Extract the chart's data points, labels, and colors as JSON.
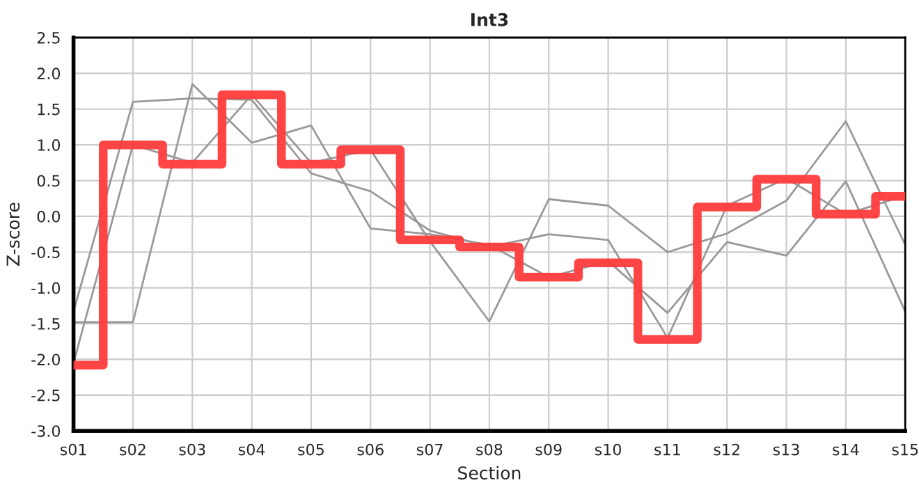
{
  "chart_data": {
    "type": "line",
    "title": "Int3",
    "xlabel": "Section",
    "ylabel": "Z-score",
    "categories": [
      "s01",
      "s02",
      "s03",
      "s04",
      "s05",
      "s06",
      "s07",
      "s08",
      "s09",
      "s10",
      "s11",
      "s12",
      "s13",
      "s14",
      "s15"
    ],
    "series": [
      {
        "color": "#999999",
        "values": [
          -1.48,
          -1.48,
          1.85,
          1.03,
          1.27,
          -0.17,
          -0.25,
          -0.4,
          -0.85,
          -0.63,
          -1.35,
          -0.36,
          -0.55,
          0.49,
          -1.33
        ]
      },
      {
        "color": "#999999",
        "values": [
          -1.33,
          1.6,
          1.65,
          1.63,
          0.6,
          0.35,
          -0.2,
          -0.43,
          -0.25,
          -0.33,
          -1.7,
          0.15,
          0.53,
          0.03,
          0.29
        ]
      },
      {
        "color": "#999999",
        "values": [
          -2.05,
          1.0,
          0.75,
          1.7,
          0.75,
          0.93,
          -0.35,
          -1.47,
          0.24,
          0.15,
          -0.5,
          -0.24,
          0.22,
          1.33,
          -0.4
        ]
      },
      {
        "type": "step",
        "color": "#ff3b3b",
        "values": [
          -2.08,
          1.0,
          0.73,
          1.7,
          0.73,
          0.93,
          -0.33,
          -0.43,
          -0.85,
          -0.65,
          -1.72,
          0.13,
          0.52,
          0.03,
          0.28
        ]
      }
    ],
    "ylim": [
      -3.0,
      2.5
    ],
    "yticks": [
      {
        "value": -3.0,
        "label": "-3.0"
      },
      {
        "value": -2.5,
        "label": "-2.5"
      },
      {
        "value": -2.0,
        "label": "-2.0"
      },
      {
        "value": -1.5,
        "label": "-1.5"
      },
      {
        "value": -1.0,
        "label": "-1.0"
      },
      {
        "value": -0.5,
        "label": "-0.5"
      },
      {
        "value": 0,
        "label": "0.0"
      },
      {
        "value": 0.5,
        "label": "0.5"
      },
      {
        "value": 1.0,
        "label": "1.0"
      },
      {
        "value": 1.5,
        "label": "1.5"
      },
      {
        "value": 2.0,
        "label": "2.0"
      },
      {
        "value": 2.5,
        "label": "2.5"
      }
    ],
    "grid": true,
    "legend": false
  }
}
